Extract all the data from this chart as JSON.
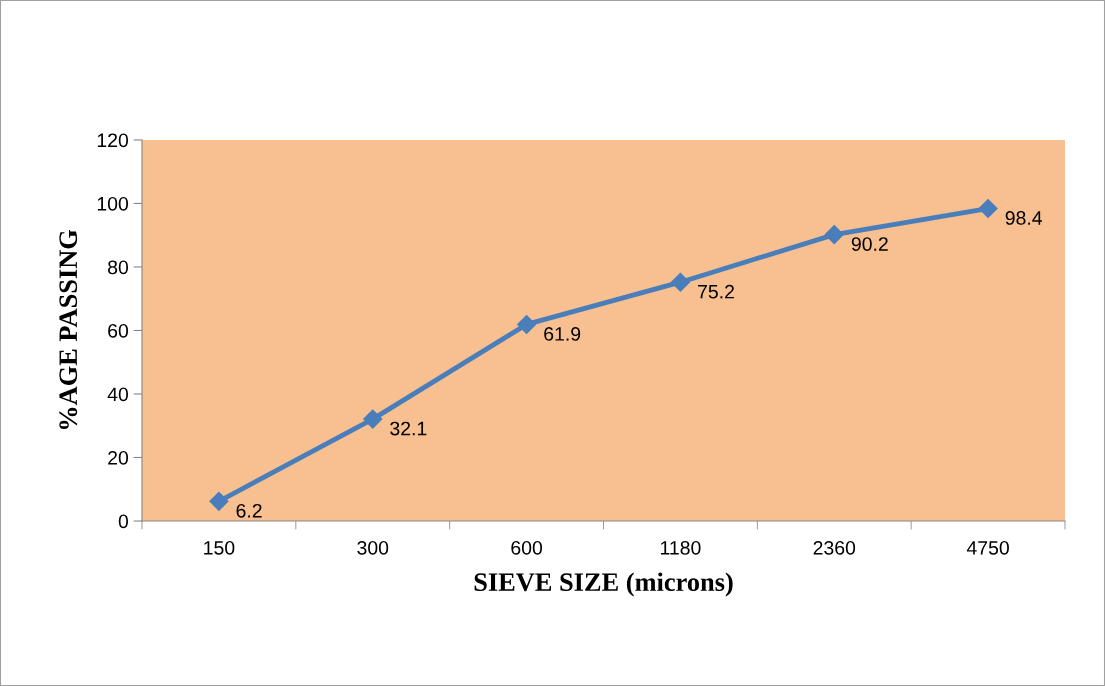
{
  "chart_data": {
    "type": "line",
    "xlabel": "SIEVE SIZE (microns)",
    "ylabel": "%AGE PASSING",
    "categories": [
      "150",
      "300",
      "600",
      "1180",
      "2360",
      "4750"
    ],
    "series": [
      {
        "color": "#4a7ebb",
        "values": [
          6.2,
          32.1,
          61.9,
          75.2,
          90.2,
          98.4
        ]
      }
    ],
    "ylim": [
      0,
      120
    ],
    "yticks": [
      0,
      20,
      40,
      60,
      80,
      100,
      120
    ],
    "marker": "diamond",
    "line_style": "solid",
    "data_labels": true,
    "grid": false,
    "legend": false
  }
}
